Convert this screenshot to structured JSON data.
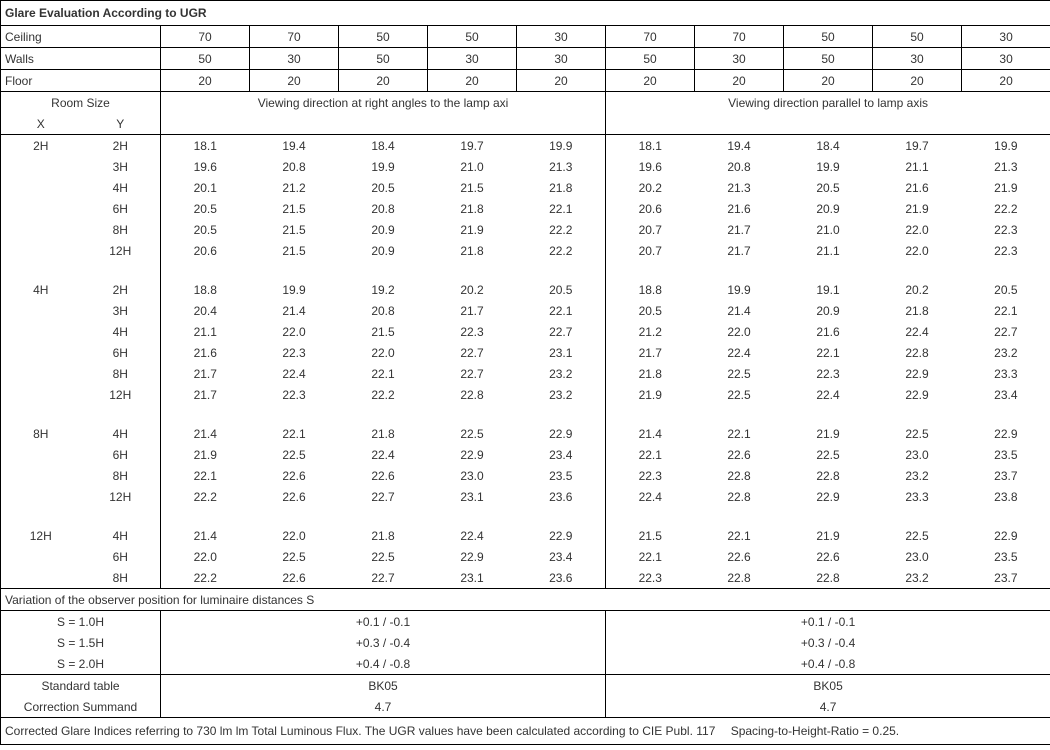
{
  "title": "Glare Evaluation According to UGR",
  "surface_labels": [
    "Ceiling",
    "Walls",
    "Floor"
  ],
  "surface_values": {
    "ceiling": [
      "70",
      "70",
      "50",
      "50",
      "30",
      "70",
      "70",
      "50",
      "50",
      "30"
    ],
    "walls": [
      "50",
      "30",
      "50",
      "30",
      "30",
      "50",
      "30",
      "50",
      "30",
      "30"
    ],
    "floor": [
      "20",
      "20",
      "20",
      "20",
      "20",
      "20",
      "20",
      "20",
      "20",
      "20"
    ]
  },
  "room_size_label": "Room Size",
  "x_label": "X",
  "y_label": "Y",
  "direction_a": "Viewing direction at right angles to the lamp axi",
  "direction_b": "Viewing direction parallel to lamp axis",
  "groups": [
    {
      "x": "2H",
      "rows": [
        {
          "y": "2H",
          "a": [
            "18.1",
            "19.4",
            "18.4",
            "19.7",
            "19.9"
          ],
          "b": [
            "18.1",
            "19.4",
            "18.4",
            "19.7",
            "19.9"
          ]
        },
        {
          "y": "3H",
          "a": [
            "19.6",
            "20.8",
            "19.9",
            "21.0",
            "21.3"
          ],
          "b": [
            "19.6",
            "20.8",
            "19.9",
            "21.1",
            "21.3"
          ]
        },
        {
          "y": "4H",
          "a": [
            "20.1",
            "21.2",
            "20.5",
            "21.5",
            "21.8"
          ],
          "b": [
            "20.2",
            "21.3",
            "20.5",
            "21.6",
            "21.9"
          ]
        },
        {
          "y": "6H",
          "a": [
            "20.5",
            "21.5",
            "20.8",
            "21.8",
            "22.1"
          ],
          "b": [
            "20.6",
            "21.6",
            "20.9",
            "21.9",
            "22.2"
          ]
        },
        {
          "y": "8H",
          "a": [
            "20.5",
            "21.5",
            "20.9",
            "21.9",
            "22.2"
          ],
          "b": [
            "20.7",
            "21.7",
            "21.0",
            "22.0",
            "22.3"
          ]
        },
        {
          "y": "12H",
          "a": [
            "20.6",
            "21.5",
            "20.9",
            "21.8",
            "22.2"
          ],
          "b": [
            "20.7",
            "21.7",
            "21.1",
            "22.0",
            "22.3"
          ]
        }
      ]
    },
    {
      "x": "4H",
      "rows": [
        {
          "y": "2H",
          "a": [
            "18.8",
            "19.9",
            "19.2",
            "20.2",
            "20.5"
          ],
          "b": [
            "18.8",
            "19.9",
            "19.1",
            "20.2",
            "20.5"
          ]
        },
        {
          "y": "3H",
          "a": [
            "20.4",
            "21.4",
            "20.8",
            "21.7",
            "22.1"
          ],
          "b": [
            "20.5",
            "21.4",
            "20.9",
            "21.8",
            "22.1"
          ]
        },
        {
          "y": "4H",
          "a": [
            "21.1",
            "22.0",
            "21.5",
            "22.3",
            "22.7"
          ],
          "b": [
            "21.2",
            "22.0",
            "21.6",
            "22.4",
            "22.7"
          ]
        },
        {
          "y": "6H",
          "a": [
            "21.6",
            "22.3",
            "22.0",
            "22.7",
            "23.1"
          ],
          "b": [
            "21.7",
            "22.4",
            "22.1",
            "22.8",
            "23.2"
          ]
        },
        {
          "y": "8H",
          "a": [
            "21.7",
            "22.4",
            "22.1",
            "22.7",
            "23.2"
          ],
          "b": [
            "21.8",
            "22.5",
            "22.3",
            "22.9",
            "23.3"
          ]
        },
        {
          "y": "12H",
          "a": [
            "21.7",
            "22.3",
            "22.2",
            "22.8",
            "23.2"
          ],
          "b": [
            "21.9",
            "22.5",
            "22.4",
            "22.9",
            "23.4"
          ]
        }
      ]
    },
    {
      "x": "8H",
      "rows": [
        {
          "y": "4H",
          "a": [
            "21.4",
            "22.1",
            "21.8",
            "22.5",
            "22.9"
          ],
          "b": [
            "21.4",
            "22.1",
            "21.9",
            "22.5",
            "22.9"
          ]
        },
        {
          "y": "6H",
          "a": [
            "21.9",
            "22.5",
            "22.4",
            "22.9",
            "23.4"
          ],
          "b": [
            "22.1",
            "22.6",
            "22.5",
            "23.0",
            "23.5"
          ]
        },
        {
          "y": "8H",
          "a": [
            "22.1",
            "22.6",
            "22.6",
            "23.0",
            "23.5"
          ],
          "b": [
            "22.3",
            "22.8",
            "22.8",
            "23.2",
            "23.7"
          ]
        },
        {
          "y": "12H",
          "a": [
            "22.2",
            "22.6",
            "22.7",
            "23.1",
            "23.6"
          ],
          "b": [
            "22.4",
            "22.8",
            "22.9",
            "23.3",
            "23.8"
          ]
        }
      ]
    },
    {
      "x": "12H",
      "rows": [
        {
          "y": "4H",
          "a": [
            "21.4",
            "22.0",
            "21.8",
            "22.4",
            "22.9"
          ],
          "b": [
            "21.5",
            "22.1",
            "21.9",
            "22.5",
            "22.9"
          ]
        },
        {
          "y": "6H",
          "a": [
            "22.0",
            "22.5",
            "22.5",
            "22.9",
            "23.4"
          ],
          "b": [
            "22.1",
            "22.6",
            "22.6",
            "23.0",
            "23.5"
          ]
        },
        {
          "y": "8H",
          "a": [
            "22.2",
            "22.6",
            "22.7",
            "23.1",
            "23.6"
          ],
          "b": [
            "22.3",
            "22.8",
            "22.8",
            "23.2",
            "23.7"
          ]
        }
      ]
    }
  ],
  "variation_title": "Variation of the observer position for luminaire distances S",
  "variation_rows": [
    {
      "label": "S = 1.0H",
      "a": "+0.1 / -0.1",
      "b": "+0.1 / -0.1"
    },
    {
      "label": "S = 1.5H",
      "a": "+0.3 / -0.4",
      "b": "+0.3 / -0.4"
    },
    {
      "label": "S = 2.0H",
      "a": "+0.4 / -0.8",
      "b": "+0.4 / -0.8"
    }
  ],
  "std_table_label": "Standard table",
  "std_table_a": "BK05",
  "std_table_b": "BK05",
  "correction_label": "Correction Summand",
  "correction_a": "4.7",
  "correction_b": "4.7",
  "footer_text": "Corrected Glare Indices referring to 730 lm lm Total Luminous Flux. The UGR values have been calculated according to CIE Publ. 117  Spacing-to-Height-Ratio = 0.25."
}
